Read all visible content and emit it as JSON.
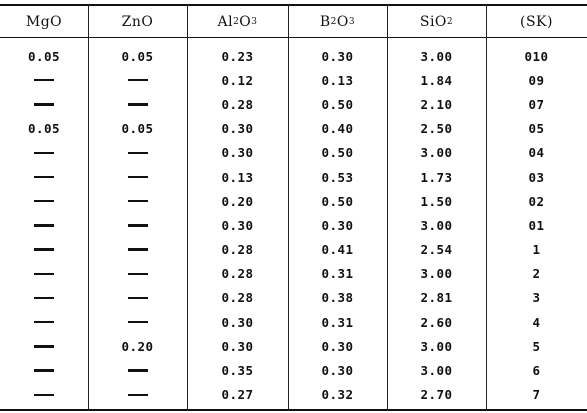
{
  "table": {
    "headers": [
      {
        "base": "MgO",
        "parts": []
      },
      {
        "base": "ZnO",
        "parts": []
      },
      {
        "base": "Al",
        "parts": [
          [
            "sub",
            "2"
          ],
          [
            "txt",
            "O"
          ],
          [
            "sub",
            "3"
          ]
        ]
      },
      {
        "base": "B",
        "parts": [
          [
            "sub",
            "2"
          ],
          [
            "txt",
            "O"
          ],
          [
            "sub",
            "3"
          ]
        ]
      },
      {
        "base": "SiO",
        "parts": [
          [
            "sub",
            "2"
          ]
        ]
      },
      {
        "base": "(SK)",
        "parts": []
      }
    ],
    "header_text": [
      "MgO",
      "ZnO",
      "Al2O3",
      "B2O3",
      "SiO2",
      "(SK)"
    ],
    "dash_symbol": "—",
    "rows": [
      [
        "0.05",
        "0.05",
        "0.23",
        "0.30",
        "3.00",
        "010"
      ],
      [
        "—",
        "—",
        "0.12",
        "0.13",
        "1.84",
        "09"
      ],
      [
        "—",
        "—",
        "0.28",
        "0.50",
        "2.10",
        "07"
      ],
      [
        "0.05",
        "0.05",
        "0.30",
        "0.40",
        "2.50",
        "05"
      ],
      [
        "—",
        "—",
        "0.30",
        "0.50",
        "3.00",
        "04"
      ],
      [
        "—",
        "—",
        "0.13",
        "0.53",
        "1.73",
        "03"
      ],
      [
        "—",
        "—",
        "0.20",
        "0.50",
        "1.50",
        "02"
      ],
      [
        "—",
        "—",
        "0.30",
        "0.30",
        "3.00",
        "01"
      ],
      [
        "—",
        "—",
        "0.28",
        "0.41",
        "2.54",
        "1"
      ],
      [
        "—",
        "—",
        "0.28",
        "0.31",
        "3.00",
        "2"
      ],
      [
        "—",
        "—",
        "0.28",
        "0.38",
        "2.81",
        "3"
      ],
      [
        "—",
        "—",
        "0.30",
        "0.31",
        "2.60",
        "4"
      ],
      [
        "—",
        "0.20",
        "0.30",
        "0.30",
        "3.00",
        "5"
      ],
      [
        "—",
        "—",
        "0.35",
        "0.30",
        "3.00",
        "6"
      ],
      [
        "—",
        "—",
        "0.27",
        "0.32",
        "2.70",
        "7"
      ]
    ]
  }
}
